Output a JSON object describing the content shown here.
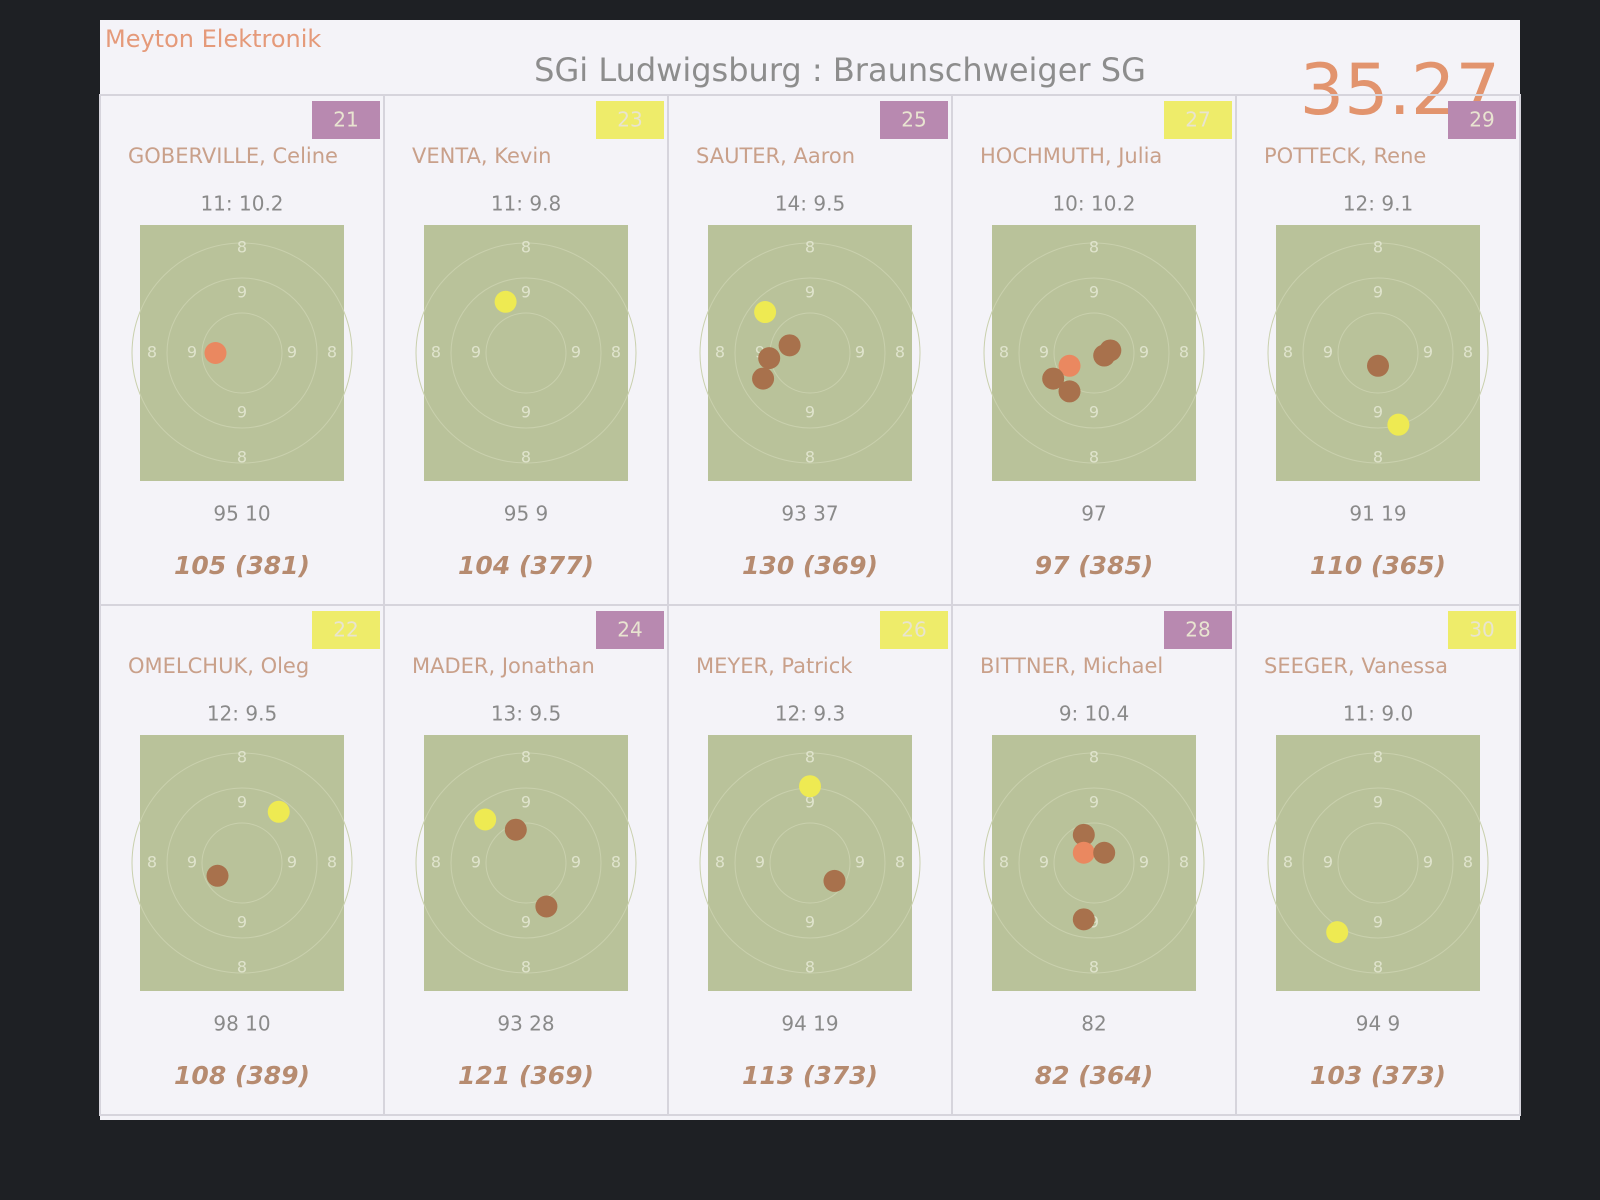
{
  "header": {
    "brand": "Meyton Elektronik",
    "title": "SGi Ludwigsburg : Braunschweiger SG",
    "time": "35.27"
  },
  "target_labels": {
    "outer": "8",
    "inner": "9"
  },
  "shooters": [
    {
      "lane": "21",
      "lane_color": "#b889b0",
      "name": "GOBERVILLE, Celine",
      "last_shot": "11:  10.2",
      "series": "95 10",
      "total": "105 (381)"
    },
    {
      "lane": "23",
      "lane_color": "#eeec6a",
      "name": "VENTA, Kevin",
      "last_shot": "11:  9.8",
      "series": "95 9",
      "total": "104 (377)"
    },
    {
      "lane": "25",
      "lane_color": "#b889b0",
      "name": "SAUTER, Aaron",
      "last_shot": "14:  9.5",
      "series": "93 37",
      "total": "130 (369)"
    },
    {
      "lane": "27",
      "lane_color": "#eeec6a",
      "name": "HOCHMUTH, Julia",
      "last_shot": "10:  10.2",
      "series": "97",
      "total": "97 (385)"
    },
    {
      "lane": "29",
      "lane_color": "#b889b0",
      "name": "POTTECK, Rene",
      "last_shot": "12:  9.1",
      "series": "91 19",
      "total": "110 (365)"
    },
    {
      "lane": "22",
      "lane_color": "#eeec6a",
      "name": "OMELCHUK, Oleg",
      "last_shot": "12:  9.5",
      "series": "98 10",
      "total": "108 (389)"
    },
    {
      "lane": "24",
      "lane_color": "#b889b0",
      "name": "MADER, Jonathan",
      "last_shot": "13:  9.5",
      "series": "93 28",
      "total": "121 (369)"
    },
    {
      "lane": "26",
      "lane_color": "#eeec6a",
      "name": "MEYER, Patrick",
      "last_shot": "12:  9.3",
      "series": "94 19",
      "total": "113 (373)"
    },
    {
      "lane": "28",
      "lane_color": "#b889b0",
      "name": "BITTNER, Michael",
      "last_shot": "9:  10.4",
      "series": "82",
      "total": "82 (364)"
    },
    {
      "lane": "30",
      "lane_color": "#eeec6a",
      "name": "SEEGER, Vanessa",
      "last_shot": "11:  9.0",
      "series": "94 9",
      "total": "103 (373)"
    }
  ]
}
